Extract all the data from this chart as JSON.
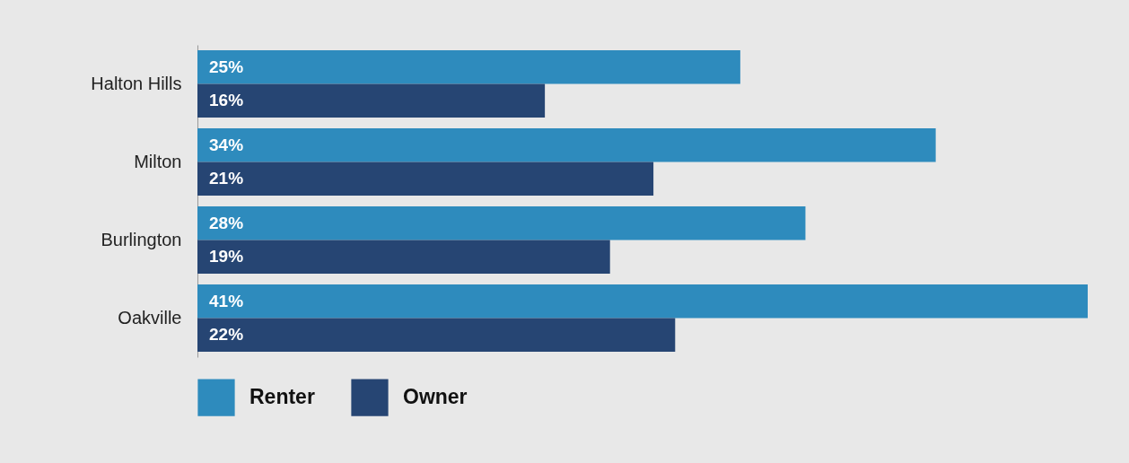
{
  "chart_data": {
    "type": "bar",
    "orientation": "horizontal",
    "categories": [
      "Halton Hills",
      "Milton",
      "Burlington",
      "Oakville"
    ],
    "series": [
      {
        "name": "Renter",
        "color": "#2e8bbd",
        "values": [
          25,
          34,
          28,
          41
        ],
        "value_labels": [
          "25%",
          "34%",
          "28%",
          "41%"
        ]
      },
      {
        "name": "Owner",
        "color": "#264573",
        "values": [
          16,
          21,
          19,
          22
        ],
        "value_labels": [
          "16%",
          "21%",
          "19%",
          "22%"
        ]
      }
    ],
    "legend": "bottom left"
  }
}
